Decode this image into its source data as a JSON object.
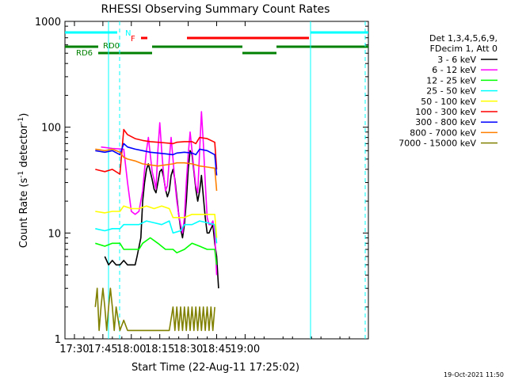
{
  "chart_data": {
    "type": "line",
    "title": "RHESSI Observing Summary Count Rates",
    "xlabel": "Start Time (22-Aug-11 17:25:02)",
    "ylabel_main": "Count Rate (s",
    "ylabel_sup1": "-1",
    "ylabel_mid": " detector",
    "ylabel_sup2": "-1",
    "ylabel_end": ")",
    "y_scale": "log",
    "ylim": [
      1,
      1000
    ],
    "xlim_min": [
      1045,
      1205
    ],
    "x_ticks": [
      {
        "v": 1050,
        "label": "17:30"
      },
      {
        "v": 1065,
        "label": "17:45"
      },
      {
        "v": 1080,
        "label": "18:00"
      },
      {
        "v": 1095,
        "label": "18:15"
      },
      {
        "v": 1110,
        "label": "18:30"
      },
      {
        "v": 1125,
        "label": "18:45"
      },
      {
        "v": 1140,
        "label": "19:00"
      }
    ],
    "y_ticks": [
      {
        "v": 1,
        "label": "1"
      },
      {
        "v": 10,
        "label": "10"
      },
      {
        "v": 100,
        "label": "100"
      },
      {
        "v": 1000,
        "label": "1000"
      }
    ],
    "legend_header": [
      "Det 1,3,4,5,6,9,",
      "FDecim 1, Att 0"
    ],
    "legend_placement": "right, outside plot",
    "timestamp": "19-Oct-2021 11:50",
    "flag_labels": [
      {
        "text": "N",
        "color": "#00ffff"
      },
      {
        "text": "F",
        "color": "#ff0000"
      },
      {
        "text": "RD0",
        "color": "#008000"
      },
      {
        "text": "RD6",
        "color": "#008000"
      }
    ],
    "series": [
      {
        "name": "3 - 6 keV",
        "color": "#000000",
        "values": [
          [
            1066,
            6
          ],
          [
            1068,
            5
          ],
          [
            1070,
            5.5
          ],
          [
            1072,
            5
          ],
          [
            1074,
            5
          ],
          [
            1076,
            5.5
          ],
          [
            1078,
            5
          ],
          [
            1080,
            5
          ],
          [
            1082,
            5
          ],
          [
            1083,
            6
          ],
          [
            1085,
            9
          ],
          [
            1086,
            20
          ],
          [
            1087,
            30
          ],
          [
            1088,
            40
          ],
          [
            1089,
            45
          ],
          [
            1090,
            38
          ],
          [
            1091,
            32
          ],
          [
            1092,
            26
          ],
          [
            1093,
            24
          ],
          [
            1094,
            30
          ],
          [
            1095,
            38
          ],
          [
            1096,
            40
          ],
          [
            1097,
            34
          ],
          [
            1098,
            26
          ],
          [
            1099,
            22
          ],
          [
            1100,
            25
          ],
          [
            1101,
            35
          ],
          [
            1102,
            40
          ],
          [
            1103,
            32
          ],
          [
            1104,
            22
          ],
          [
            1105,
            15
          ],
          [
            1106,
            11
          ],
          [
            1107,
            9
          ],
          [
            1108,
            12
          ],
          [
            1109,
            20
          ],
          [
            1110,
            40
          ],
          [
            1111,
            60
          ],
          [
            1112,
            55
          ],
          [
            1113,
            38
          ],
          [
            1114,
            26
          ],
          [
            1115,
            20
          ],
          [
            1116,
            25
          ],
          [
            1117,
            35
          ],
          [
            1118,
            22
          ],
          [
            1119,
            14
          ],
          [
            1120,
            10
          ],
          [
            1121,
            10
          ],
          [
            1122,
            11
          ],
          [
            1123,
            12
          ],
          [
            1124,
            8
          ],
          [
            1125,
            6
          ],
          [
            1126,
            3
          ]
        ]
      },
      {
        "name": "6 - 12 keV",
        "color": "#ff00ff",
        "values": [
          [
            1064,
            65
          ],
          [
            1070,
            63
          ],
          [
            1076,
            62
          ],
          [
            1078,
            30
          ],
          [
            1080,
            16
          ],
          [
            1082,
            15
          ],
          [
            1084,
            16
          ],
          [
            1086,
            25
          ],
          [
            1087,
            40
          ],
          [
            1088,
            60
          ],
          [
            1089,
            80
          ],
          [
            1090,
            55
          ],
          [
            1091,
            38
          ],
          [
            1092,
            32
          ],
          [
            1093,
            26
          ],
          [
            1094,
            60
          ],
          [
            1095,
            110
          ],
          [
            1096,
            60
          ],
          [
            1097,
            36
          ],
          [
            1098,
            25
          ],
          [
            1099,
            28
          ],
          [
            1100,
            50
          ],
          [
            1101,
            80
          ],
          [
            1102,
            50
          ],
          [
            1103,
            30
          ],
          [
            1104,
            20
          ],
          [
            1105,
            15
          ],
          [
            1106,
            12
          ],
          [
            1107,
            10
          ],
          [
            1108,
            14
          ],
          [
            1109,
            30
          ],
          [
            1110,
            55
          ],
          [
            1111,
            90
          ],
          [
            1112,
            60
          ],
          [
            1113,
            40
          ],
          [
            1114,
            28
          ],
          [
            1115,
            24
          ],
          [
            1116,
            60
          ],
          [
            1117,
            140
          ],
          [
            1118,
            70
          ],
          [
            1119,
            30
          ],
          [
            1120,
            14
          ],
          [
            1121,
            12
          ],
          [
            1122,
            12
          ],
          [
            1123,
            13
          ],
          [
            1124,
            10
          ],
          [
            1125,
            4
          ]
        ]
      },
      {
        "name": "12 - 25 keV",
        "color": "#00ff00",
        "values": [
          [
            1061,
            8
          ],
          [
            1066,
            7.5
          ],
          [
            1070,
            8
          ],
          [
            1074,
            8
          ],
          [
            1076,
            7
          ],
          [
            1080,
            7
          ],
          [
            1084,
            7
          ],
          [
            1086,
            8
          ],
          [
            1090,
            9
          ],
          [
            1094,
            8
          ],
          [
            1098,
            7
          ],
          [
            1102,
            7
          ],
          [
            1104,
            6.5
          ],
          [
            1108,
            7
          ],
          [
            1112,
            8
          ],
          [
            1116,
            7.5
          ],
          [
            1120,
            7
          ],
          [
            1124,
            7
          ],
          [
            1125,
            5
          ]
        ]
      },
      {
        "name": "25 - 50 keV",
        "color": "#00ffff",
        "values": [
          [
            1061,
            11
          ],
          [
            1066,
            10.5
          ],
          [
            1070,
            11
          ],
          [
            1074,
            11
          ],
          [
            1076,
            12
          ],
          [
            1080,
            12
          ],
          [
            1084,
            12
          ],
          [
            1088,
            13
          ],
          [
            1092,
            12.5
          ],
          [
            1096,
            12
          ],
          [
            1100,
            13
          ],
          [
            1102,
            10
          ],
          [
            1106,
            10.5
          ],
          [
            1108,
            12
          ],
          [
            1112,
            12
          ],
          [
            1116,
            13
          ],
          [
            1120,
            12.5
          ],
          [
            1124,
            12
          ],
          [
            1125,
            8
          ]
        ]
      },
      {
        "name": "50 - 100 keV",
        "color": "#ffff00",
        "values": [
          [
            1061,
            16
          ],
          [
            1066,
            15.5
          ],
          [
            1070,
            16
          ],
          [
            1074,
            16
          ],
          [
            1076,
            18
          ],
          [
            1080,
            17
          ],
          [
            1084,
            17
          ],
          [
            1088,
            18
          ],
          [
            1092,
            17
          ],
          [
            1096,
            18
          ],
          [
            1100,
            17
          ],
          [
            1102,
            14
          ],
          [
            1106,
            14
          ],
          [
            1108,
            14
          ],
          [
            1112,
            15
          ],
          [
            1116,
            15
          ],
          [
            1120,
            15
          ],
          [
            1124,
            15
          ],
          [
            1125,
            9
          ]
        ]
      },
      {
        "name": "100 - 300 keV",
        "color": "#ff0000",
        "values": [
          [
            1061,
            40
          ],
          [
            1066,
            38
          ],
          [
            1070,
            40
          ],
          [
            1074,
            36
          ],
          [
            1076,
            95
          ],
          [
            1078,
            85
          ],
          [
            1082,
            78
          ],
          [
            1086,
            75
          ],
          [
            1090,
            73
          ],
          [
            1094,
            72
          ],
          [
            1098,
            71
          ],
          [
            1102,
            70
          ],
          [
            1104,
            72
          ],
          [
            1108,
            73
          ],
          [
            1112,
            73
          ],
          [
            1114,
            70
          ],
          [
            1116,
            80
          ],
          [
            1120,
            78
          ],
          [
            1124,
            72
          ],
          [
            1125,
            40
          ]
        ]
      },
      {
        "name": "300 - 800 keV",
        "color": "#0000ff",
        "values": [
          [
            1061,
            60
          ],
          [
            1066,
            58
          ],
          [
            1070,
            60
          ],
          [
            1074,
            55
          ],
          [
            1076,
            70
          ],
          [
            1078,
            65
          ],
          [
            1082,
            62
          ],
          [
            1086,
            60
          ],
          [
            1090,
            58
          ],
          [
            1094,
            57
          ],
          [
            1098,
            56
          ],
          [
            1102,
            55
          ],
          [
            1104,
            57
          ],
          [
            1108,
            58
          ],
          [
            1112,
            57
          ],
          [
            1114,
            55
          ],
          [
            1116,
            62
          ],
          [
            1120,
            60
          ],
          [
            1124,
            55
          ],
          [
            1125,
            35
          ]
        ]
      },
      {
        "name": "800 - 7000 keV",
        "color": "#ff8000",
        "values": [
          [
            1061,
            62
          ],
          [
            1066,
            60
          ],
          [
            1070,
            62
          ],
          [
            1074,
            58
          ],
          [
            1076,
            52
          ],
          [
            1078,
            50
          ],
          [
            1082,
            48
          ],
          [
            1086,
            45
          ],
          [
            1090,
            44
          ],
          [
            1094,
            43
          ],
          [
            1098,
            44
          ],
          [
            1102,
            45
          ],
          [
            1104,
            46
          ],
          [
            1108,
            46
          ],
          [
            1112,
            45
          ],
          [
            1114,
            44
          ],
          [
            1116,
            43
          ],
          [
            1120,
            42
          ],
          [
            1124,
            41
          ],
          [
            1125,
            25
          ]
        ]
      },
      {
        "name": "7000 - 15000 keV",
        "color": "#808000",
        "values": [
          [
            1061,
            2
          ],
          [
            1062,
            3
          ],
          [
            1063,
            1.2
          ],
          [
            1064,
            2
          ],
          [
            1065,
            3
          ],
          [
            1066,
            2
          ],
          [
            1067,
            1.2
          ],
          [
            1068,
            2
          ],
          [
            1069,
            3
          ],
          [
            1070,
            2
          ],
          [
            1071,
            1.2
          ],
          [
            1072,
            2
          ],
          [
            1074,
            1.2
          ],
          [
            1076,
            1.5
          ],
          [
            1078,
            1.2
          ],
          [
            1080,
            1.2
          ],
          [
            1084,
            1.2
          ],
          [
            1088,
            1.2
          ],
          [
            1092,
            1.2
          ],
          [
            1096,
            1.2
          ],
          [
            1100,
            1.2
          ],
          [
            1102,
            2
          ],
          [
            1103,
            1.2
          ],
          [
            1104,
            2
          ],
          [
            1105,
            1.2
          ],
          [
            1106,
            2
          ],
          [
            1107,
            1.2
          ],
          [
            1108,
            2
          ],
          [
            1109,
            1.2
          ],
          [
            1110,
            2
          ],
          [
            1111,
            1.2
          ],
          [
            1112,
            2
          ],
          [
            1113,
            1.2
          ],
          [
            1114,
            2
          ],
          [
            1115,
            1.2
          ],
          [
            1116,
            2
          ],
          [
            1117,
            1.2
          ],
          [
            1118,
            2
          ],
          [
            1119,
            1.2
          ],
          [
            1120,
            2
          ],
          [
            1121,
            1.2
          ],
          [
            1122,
            2
          ],
          [
            1123,
            1.2
          ],
          [
            1124,
            2
          ]
        ]
      }
    ]
  }
}
